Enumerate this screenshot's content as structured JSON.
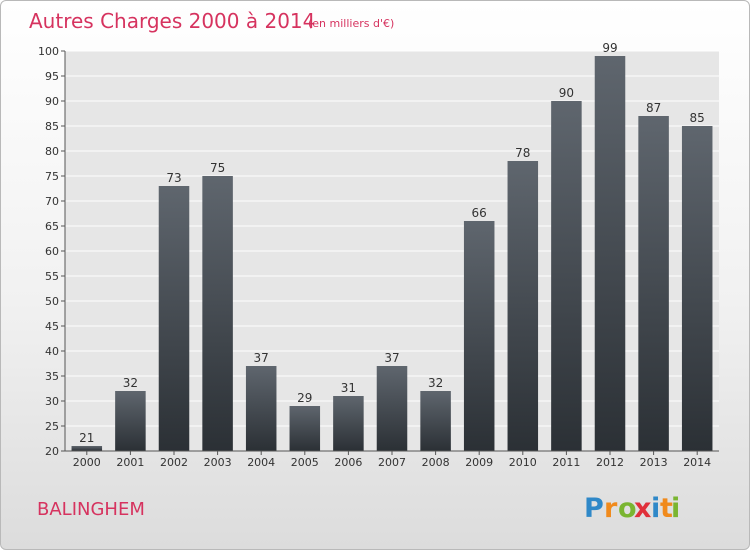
{
  "chart_data": {
    "type": "bar",
    "title": "Autres Charges 2000 à 2014",
    "subtitle": "(en milliers d'€)",
    "xlabel": "",
    "ylabel": "",
    "categories": [
      "2000",
      "2001",
      "2002",
      "2003",
      "2004",
      "2005",
      "2006",
      "2007",
      "2008",
      "2009",
      "2010",
      "2011",
      "2012",
      "2013",
      "2014"
    ],
    "values": [
      21,
      32,
      73,
      75,
      37,
      29,
      31,
      37,
      32,
      66,
      78,
      90,
      99,
      87,
      85
    ],
    "ylim": [
      20,
      100
    ],
    "yticks": [
      20,
      25,
      30,
      35,
      40,
      45,
      50,
      55,
      60,
      65,
      70,
      75,
      80,
      85,
      90,
      95,
      100
    ],
    "grid": true,
    "bar_color": "#4a525b"
  },
  "location": "BALINGHEM",
  "logo": {
    "letters": [
      "P",
      "r",
      "o",
      "x",
      "i",
      "t",
      "i"
    ],
    "colors": [
      "#2f88c8",
      "#f08a1c",
      "#7ab531",
      "#e0303a",
      "#2f88c8",
      "#f08a1c",
      "#7ab531"
    ]
  }
}
